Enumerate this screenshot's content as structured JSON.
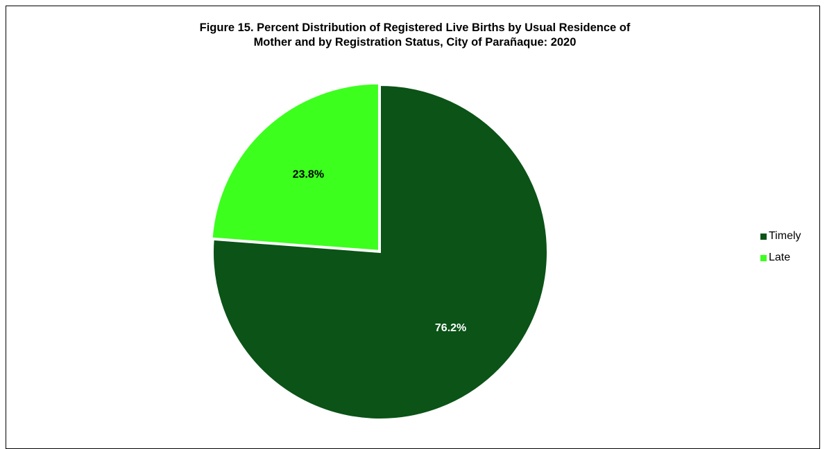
{
  "chart_data": {
    "type": "pie",
    "title": "Figure 15. Percent Distribution of Registered Live Births by Usual Residence of Mother and by Registration Status, City of Parañaque: 2020",
    "title_lines": [
      "Figure 15. Percent Distribution of Registered Live Births by Usual Residence of",
      "Mother and by Registration Status, City of Parañaque: 2020"
    ],
    "categories": [
      "Timely",
      "Late"
    ],
    "values": [
      76.2,
      23.8
    ],
    "data_labels": [
      "76.2%",
      "23.8%"
    ],
    "colors": [
      "#0b5317",
      "#3cff1e"
    ],
    "label_colors": [
      "#ffffff",
      "#000000"
    ],
    "legend_position": "right",
    "start_angle_deg": 0,
    "direction": "clockwise",
    "exploded": "Late"
  }
}
